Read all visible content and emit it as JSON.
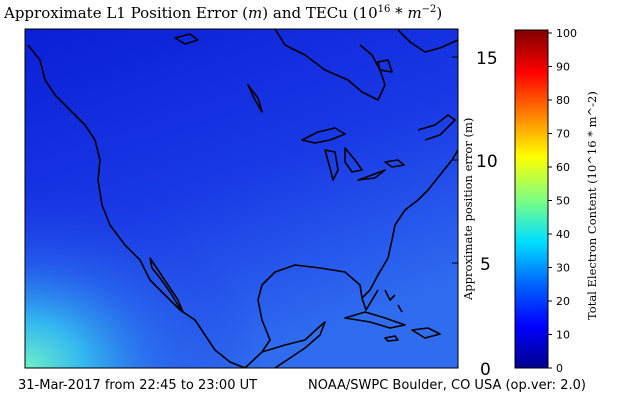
{
  "title": {
    "prefix": "Approximate L1 Position Error (",
    "unit_var": "m",
    "middle": ") and TECu (10",
    "exponent": "16",
    "suffix_a": " * ",
    "suffix_b": "m",
    "suffix_exp": "−2",
    "close": ")"
  },
  "left_axis": {
    "label": "Approximate position error (m)",
    "ticks": [
      "0",
      "5",
      "10",
      "15"
    ]
  },
  "colorbar": {
    "label": "Total Electron Content (10^16 * m^-2)",
    "ticks": [
      "0",
      "10",
      "20",
      "30",
      "40",
      "50",
      "60",
      "70",
      "80",
      "90",
      "100"
    ],
    "colors": [
      "#00008f",
      "#0000ff",
      "#0080ff",
      "#00ffff",
      "#80ff80",
      "#ffff00",
      "#ff8000",
      "#ff0000",
      "#800000"
    ]
  },
  "footer": {
    "left": "31-Mar-2017 from 22:45 to 23:00 UT",
    "right": "NOAA/SWPC Boulder, CO USA (op.ver: 2.0)"
  },
  "map": {
    "background_color": "#1c33e0",
    "region": "North America"
  }
}
